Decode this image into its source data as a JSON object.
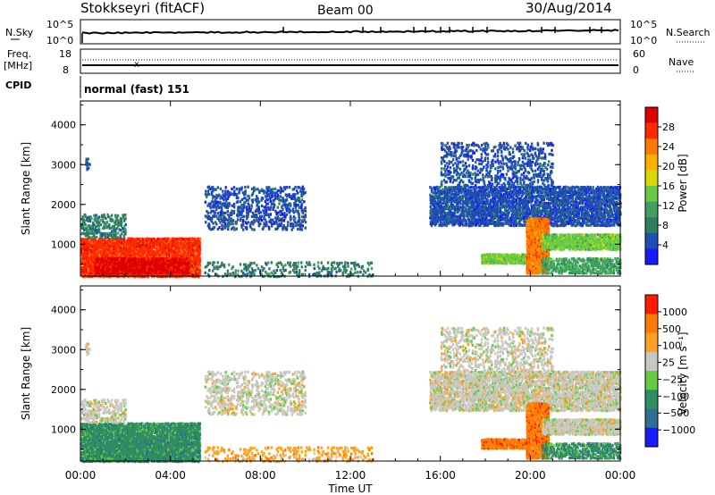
{
  "header": {
    "station": "Stokkseyri (fitACF)",
    "beam": "Beam 00",
    "date": "30/Aug/2014"
  },
  "top_panels": {
    "nsky_label": "N.Sky",
    "nsky_ticks": [
      "10^5",
      "10^0"
    ],
    "nsearch_label": "N.Search",
    "freq_label_1": "Freq.",
    "freq_label_2": "[MHz]",
    "freq_ticks": [
      "18",
      "8"
    ],
    "nave_label": "Nave",
    "nave_ticks": [
      "60",
      "0"
    ],
    "cpid_label": "CPID",
    "cpid_text": "normal (fast) 151"
  },
  "chart_data": {
    "type": "heatmap",
    "x_label": "Time UT",
    "x_ticks": [
      "00:00",
      "04:00",
      "08:00",
      "12:00",
      "16:00",
      "20:00",
      "00:00"
    ],
    "x_range_hours": [
      0,
      24
    ],
    "panels": [
      {
        "name": "power",
        "ylabel": "Slant Range [km]",
        "yrange_km": [
          200,
          4600
        ],
        "y_ticks": [
          1000,
          2000,
          3000,
          4000
        ],
        "colorbar_label": "Power [dB]",
        "colorbar_ticks": [
          "28",
          "24",
          "20",
          "16",
          "12",
          "8",
          "4"
        ],
        "colors": [
          "#1a1aff",
          "#1f4fb0",
          "#2f7f5f",
          "#3fa060",
          "#66cc44",
          "#d8d800",
          "#ffb000",
          "#ff7a00",
          "#ff2a00",
          "#e00000"
        ]
      },
      {
        "name": "velocity",
        "ylabel": "Slant Range [km]",
        "yrange_km": [
          200,
          4600
        ],
        "y_ticks": [
          1000,
          2000,
          3000,
          4000
        ],
        "colorbar_label": "Velocity [m s⁻¹]",
        "colorbar_ticks": [
          "1000",
          "500",
          "100",
          "25",
          "−25",
          "−100",
          "−500",
          "−1000"
        ],
        "colors": [
          "#1a1aff",
          "#2f6f8f",
          "#2f8f5f",
          "#66cc44",
          "#c8c8c0",
          "#ffa020",
          "#ff7a00",
          "#ff1a00"
        ]
      }
    ],
    "scatter_regions": [
      {
        "t0": 0.0,
        "t1": 5.3,
        "r0": 220,
        "r1": 1200,
        "power_idx": 8,
        "vel_idx": 2,
        "density": 0.9
      },
      {
        "t0": 0.6,
        "t1": 4.8,
        "r0": 300,
        "r1": 700,
        "power_idx": 9,
        "vel_idx": 2,
        "density": 0.9
      },
      {
        "t0": 0.0,
        "t1": 2.0,
        "r0": 1200,
        "r1": 1800,
        "power_idx": 2,
        "vel_idx": 4,
        "density": 0.4
      },
      {
        "t0": 0.2,
        "t1": 0.4,
        "r0": 2900,
        "r1": 3200,
        "power_idx": 1,
        "vel_idx": 4,
        "density": 0.5
      },
      {
        "t0": 5.5,
        "t1": 10.0,
        "r0": 1400,
        "r1": 2500,
        "power_idx": 1,
        "vel_idx": 4,
        "density": 0.35
      },
      {
        "t0": 5.5,
        "t1": 13.0,
        "r0": 220,
        "r1": 600,
        "power_idx": 2,
        "vel_idx": 5,
        "density": 0.25
      },
      {
        "t0": 15.5,
        "t1": 24.0,
        "r0": 1500,
        "r1": 2500,
        "power_idx": 1,
        "vel_idx": 4,
        "density": 0.7
      },
      {
        "t0": 16.0,
        "t1": 21.0,
        "r0": 2500,
        "r1": 3600,
        "power_idx": 1,
        "vel_idx": 4,
        "density": 0.3
      },
      {
        "t0": 17.8,
        "t1": 20.3,
        "r0": 550,
        "r1": 800,
        "power_idx": 4,
        "vel_idx": 6,
        "density": 0.95
      },
      {
        "t0": 19.8,
        "t1": 20.8,
        "r0": 300,
        "r1": 1700,
        "power_idx": 7,
        "vel_idx": 6,
        "density": 0.9
      },
      {
        "t0": 20.5,
        "t1": 24.0,
        "r0": 900,
        "r1": 1300,
        "power_idx": 4,
        "vel_idx": 4,
        "density": 0.85
      },
      {
        "t0": 20.5,
        "t1": 24.0,
        "r0": 300,
        "r1": 700,
        "power_idx": 3,
        "vel_idx": 2,
        "density": 0.6
      }
    ]
  }
}
